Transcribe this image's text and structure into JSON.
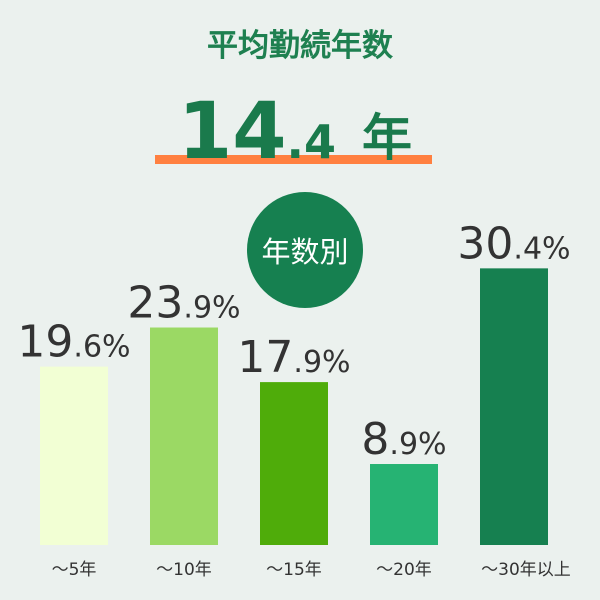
{
  "chart_data": {
    "type": "bar",
    "title": "平均勤続年数",
    "headline": "14.4",
    "headline_unit": "年",
    "badge": "年数別",
    "categories": [
      "〜5年",
      "〜10年",
      "〜15年",
      "〜20年",
      "〜30年以上"
    ],
    "values": [
      19.6,
      23.9,
      17.9,
      8.9,
      30.4
    ],
    "value_labels": [
      "19.6%",
      "23.9%",
      "17.9%",
      "8.9%",
      "30.4%"
    ],
    "colors": [
      "#f2ffd4",
      "#9bd964",
      "#4fac0a",
      "#26b373",
      "#168050"
    ]
  }
}
